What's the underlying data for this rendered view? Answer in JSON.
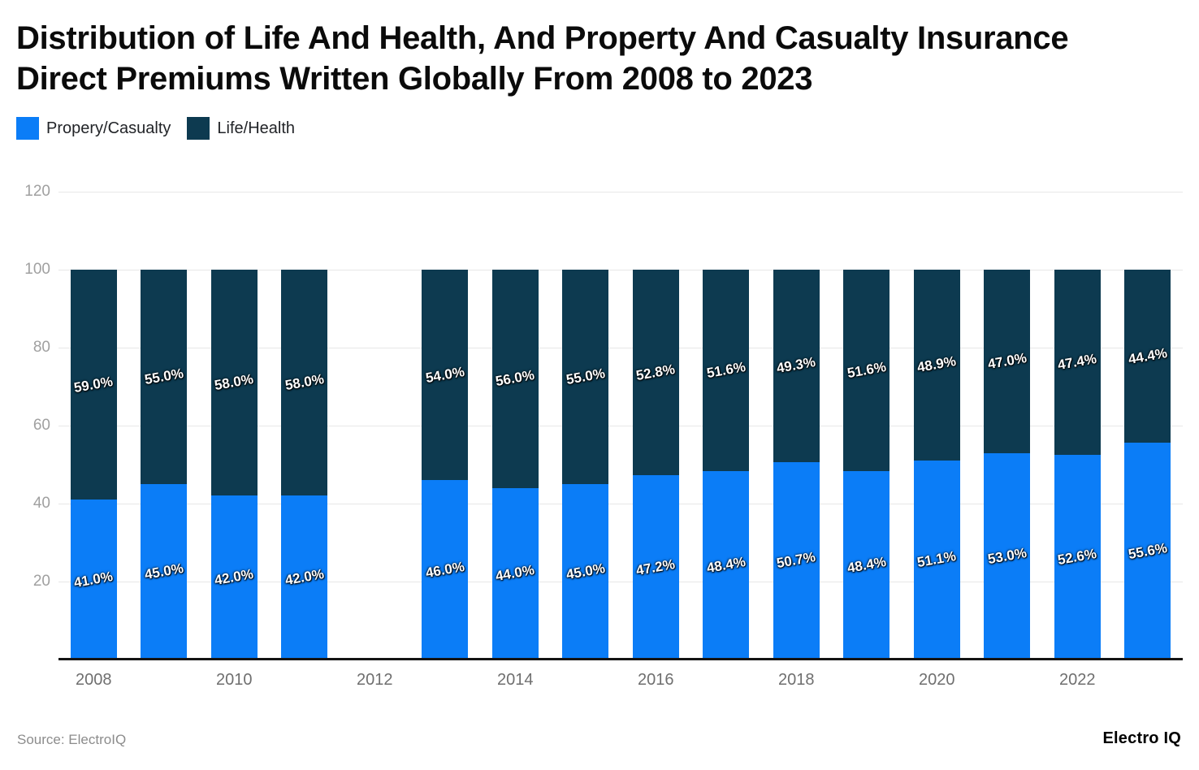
{
  "header": {
    "title_lines": [
      "Distribution of Life And Health, And Property And Casualty Insurance",
      "Direct Premiums Written Globally From 2008 to 2023"
    ]
  },
  "legend": [
    {
      "label": "Propery/Casualty",
      "color": "#0b7df7"
    },
    {
      "label": "Life/Health",
      "color": "#0d3a50"
    }
  ],
  "footer": {
    "source": "Source: ElectroIQ",
    "brand": "Electro IQ"
  },
  "chart_data": {
    "type": "bar",
    "stacked": true,
    "title": "Distribution of Life And Health, And Property And Casualty Insurance Direct Premiums Written Globally From 2008 to 2023",
    "categories": [
      "2008",
      "2009",
      "2010",
      "2011",
      "2012",
      "2013",
      "2014",
      "2015",
      "2016",
      "2017",
      "2018",
      "2019",
      "2020",
      "2021",
      "2022",
      "2023"
    ],
    "series": [
      {
        "name": "Propery/Casualty",
        "color": "#0b7df7",
        "values": [
          41.0,
          45.0,
          42.0,
          42.0,
          null,
          46.0,
          44.0,
          45.0,
          47.2,
          48.4,
          50.7,
          48.4,
          51.1,
          53.0,
          52.6,
          55.6
        ]
      },
      {
        "name": "Life/Health",
        "color": "#0d3a50",
        "values": [
          59.0,
          55.0,
          58.0,
          58.0,
          null,
          54.0,
          56.0,
          55.0,
          52.8,
          51.6,
          49.3,
          51.6,
          48.9,
          47.0,
          47.4,
          44.4
        ]
      }
    ],
    "value_label_suffix": "%",
    "value_label_decimals": 1,
    "ylim": [
      0,
      120
    ],
    "yticks": [
      20,
      40,
      60,
      80,
      100,
      120
    ],
    "x_tick_labels": [
      "2008",
      "2010",
      "2012",
      "2014",
      "2016",
      "2018",
      "2020",
      "2022"
    ],
    "x_tick_every": 2,
    "grid": true,
    "legend_position": "top-left",
    "notes": "no bar rendered for 2012 (missing data)"
  }
}
